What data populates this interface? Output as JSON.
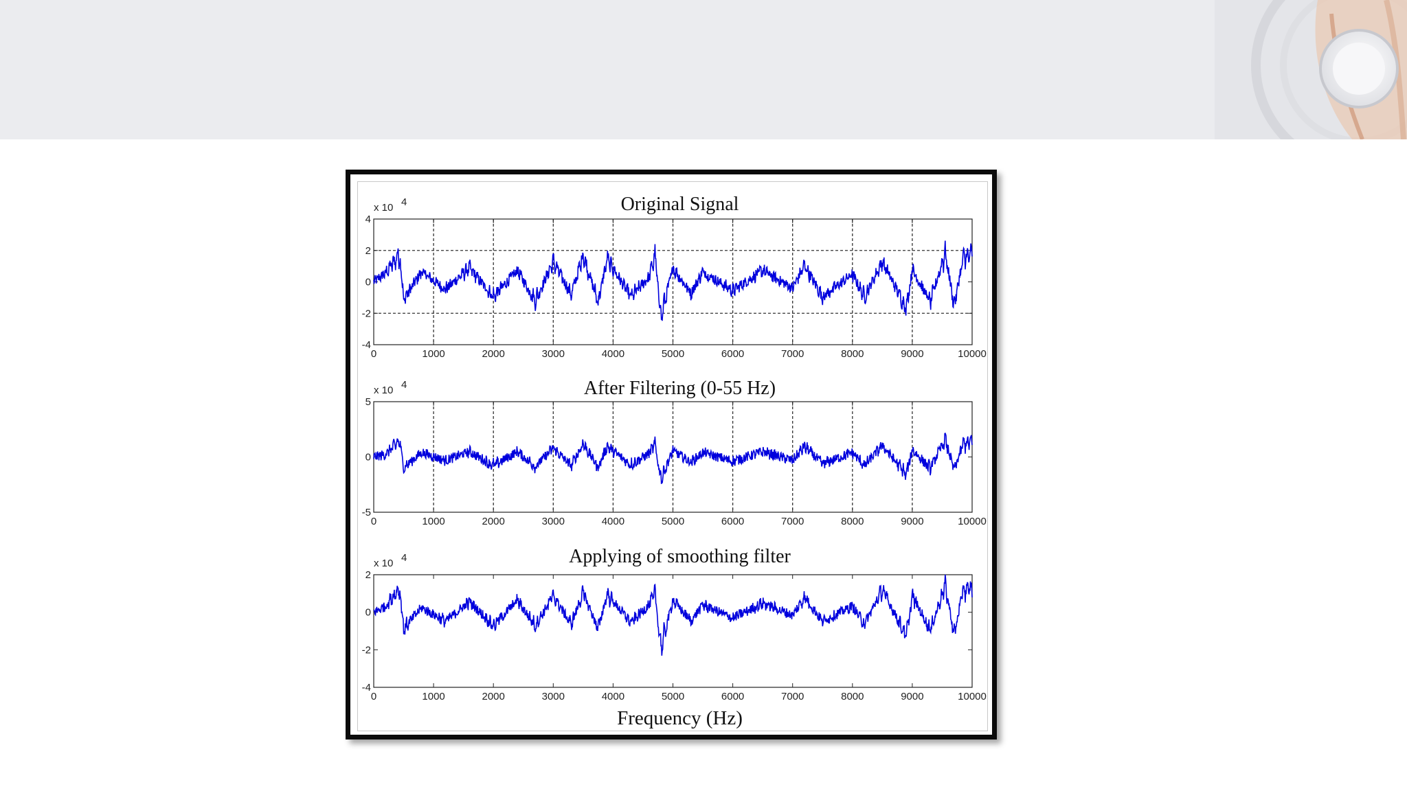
{
  "slide": {
    "background": "#ffffff",
    "header_color": "#ebecef"
  },
  "chart_data": [
    {
      "type": "line",
      "title": "Original Signal",
      "xlabel": "",
      "ylabel": "",
      "y_multiplier": "x 10",
      "y_exponent": "4",
      "xlim": [
        0,
        10000
      ],
      "ylim": [
        -4,
        4
      ],
      "x_ticks": [
        0,
        1000,
        2000,
        3000,
        4000,
        5000,
        6000,
        7000,
        8000,
        9000,
        10000
      ],
      "x_tick_labels": [
        "0",
        "1000",
        "2000",
        "3000",
        "4000",
        "5000",
        "6000",
        "7000",
        "8000",
        "9000",
        "10000"
      ],
      "y_ticks": [
        4,
        2,
        0,
        -2,
        -4
      ],
      "y_tick_labels": [
        "4",
        "2",
        "0",
        "-2",
        "-4"
      ],
      "grid": "dashed vertical at x ticks; dashed horizontal at y = 2 and y = -2",
      "line_color": "#0000dd",
      "series": [
        {
          "x": [
            0,
            200,
            430,
            500,
            800,
            1200,
            1600,
            2000,
            2400,
            2700,
            3000,
            3300,
            3500,
            3750,
            3900,
            4300,
            4600,
            4700,
            4800,
            5000,
            5300,
            5500,
            6000,
            6500,
            7000,
            7200,
            7500,
            8000,
            8200,
            8500,
            8900,
            9000,
            9300,
            9550,
            9700,
            9850,
            10000
          ],
          "y": [
            0,
            0.7,
            2.2,
            -1.4,
            0.8,
            -0.6,
            1.1,
            -1.2,
            0.9,
            -1.5,
            1.6,
            -1.0,
            2.1,
            -1.6,
            1.8,
            -1.2,
            0.4,
            2.1,
            -2.8,
            1.1,
            -0.9,
            0.8,
            -0.7,
            0.9,
            -0.5,
            1.3,
            -1.2,
            0.6,
            -1.2,
            1.6,
            -2.1,
            1.0,
            -1.6,
            2.3,
            -1.9,
            1.9,
            2.2
          ]
        }
      ]
    },
    {
      "type": "line",
      "title": "After Filtering (0-55 Hz)",
      "xlabel": "",
      "ylabel": "",
      "y_multiplier": "x 10",
      "y_exponent": "4",
      "xlim": [
        0,
        10000
      ],
      "ylim": [
        -5,
        5
      ],
      "x_ticks": [
        0,
        1000,
        2000,
        3000,
        4000,
        5000,
        6000,
        7000,
        8000,
        9000,
        10000
      ],
      "x_tick_labels": [
        "0",
        "1000",
        "2000",
        "3000",
        "4000",
        "5000",
        "6000",
        "7000",
        "8000",
        "9000",
        "10000"
      ],
      "y_ticks": [
        5,
        0,
        -5
      ],
      "y_tick_labels": [
        "5",
        "0",
        "-5"
      ],
      "grid": "dashed vertical at x ticks",
      "line_color": "#0000dd",
      "series": [
        {
          "x": [
            0,
            200,
            430,
            500,
            800,
            1200,
            1600,
            2000,
            2400,
            2700,
            3000,
            3300,
            3500,
            3750,
            3900,
            4300,
            4600,
            4700,
            4800,
            5000,
            5300,
            5500,
            6000,
            6500,
            7000,
            7200,
            7500,
            8000,
            8200,
            8500,
            8900,
            9000,
            9300,
            9550,
            9700,
            9850,
            10000
          ],
          "y": [
            0,
            0.3,
            1.8,
            -1.2,
            0.5,
            -0.4,
            0.6,
            -1.0,
            0.6,
            -1.1,
            1.0,
            -1.0,
            1.5,
            -1.2,
            1.2,
            -0.9,
            0.4,
            1.4,
            -2.5,
            0.7,
            -0.6,
            0.5,
            -0.5,
            0.6,
            -0.4,
            1.2,
            -0.8,
            0.5,
            -1.0,
            1.3,
            -2.0,
            0.8,
            -1.3,
            2.0,
            -1.5,
            1.5,
            1.7
          ]
        }
      ]
    },
    {
      "type": "line",
      "title": "Applying of smoothing filter",
      "xlabel": "Frequency (Hz)",
      "ylabel": "",
      "y_multiplier": "x 10",
      "y_exponent": "4",
      "xlim": [
        0,
        10000
      ],
      "ylim": [
        -4,
        2
      ],
      "x_ticks": [
        0,
        1000,
        2000,
        3000,
        4000,
        5000,
        6000,
        7000,
        8000,
        9000,
        10000
      ],
      "x_tick_labels": [
        "0",
        "1000",
        "2000",
        "3000",
        "4000",
        "5000",
        "6000",
        "7000",
        "8000",
        "9000",
        "10000"
      ],
      "y_ticks": [
        2,
        0,
        -2,
        -4
      ],
      "y_tick_labels": [
        "2",
        "0",
        "-2",
        "-4"
      ],
      "grid": "none",
      "line_color": "#0000dd",
      "series": [
        {
          "x": [
            0,
            200,
            430,
            500,
            800,
            1200,
            1600,
            2000,
            2400,
            2700,
            3000,
            3300,
            3500,
            3750,
            3900,
            4300,
            4600,
            4700,
            4800,
            5000,
            5300,
            5500,
            6000,
            6500,
            7000,
            7200,
            7500,
            8000,
            8200,
            8500,
            8900,
            9000,
            9300,
            9550,
            9700,
            9850,
            10000
          ],
          "y": [
            0,
            0.4,
            1.6,
            -1.1,
            0.3,
            -0.6,
            0.7,
            -0.9,
            0.8,
            -0.9,
            1.1,
            -0.8,
            1.3,
            -1.1,
            1.2,
            -0.7,
            0.5,
            1.3,
            -2.4,
            0.8,
            -0.6,
            0.5,
            -0.4,
            0.6,
            -0.2,
            1.0,
            -0.6,
            0.4,
            -0.8,
            1.5,
            -1.6,
            1.1,
            -1.2,
            1.8,
            -1.5,
            1.5,
            1.5
          ]
        }
      ]
    }
  ]
}
